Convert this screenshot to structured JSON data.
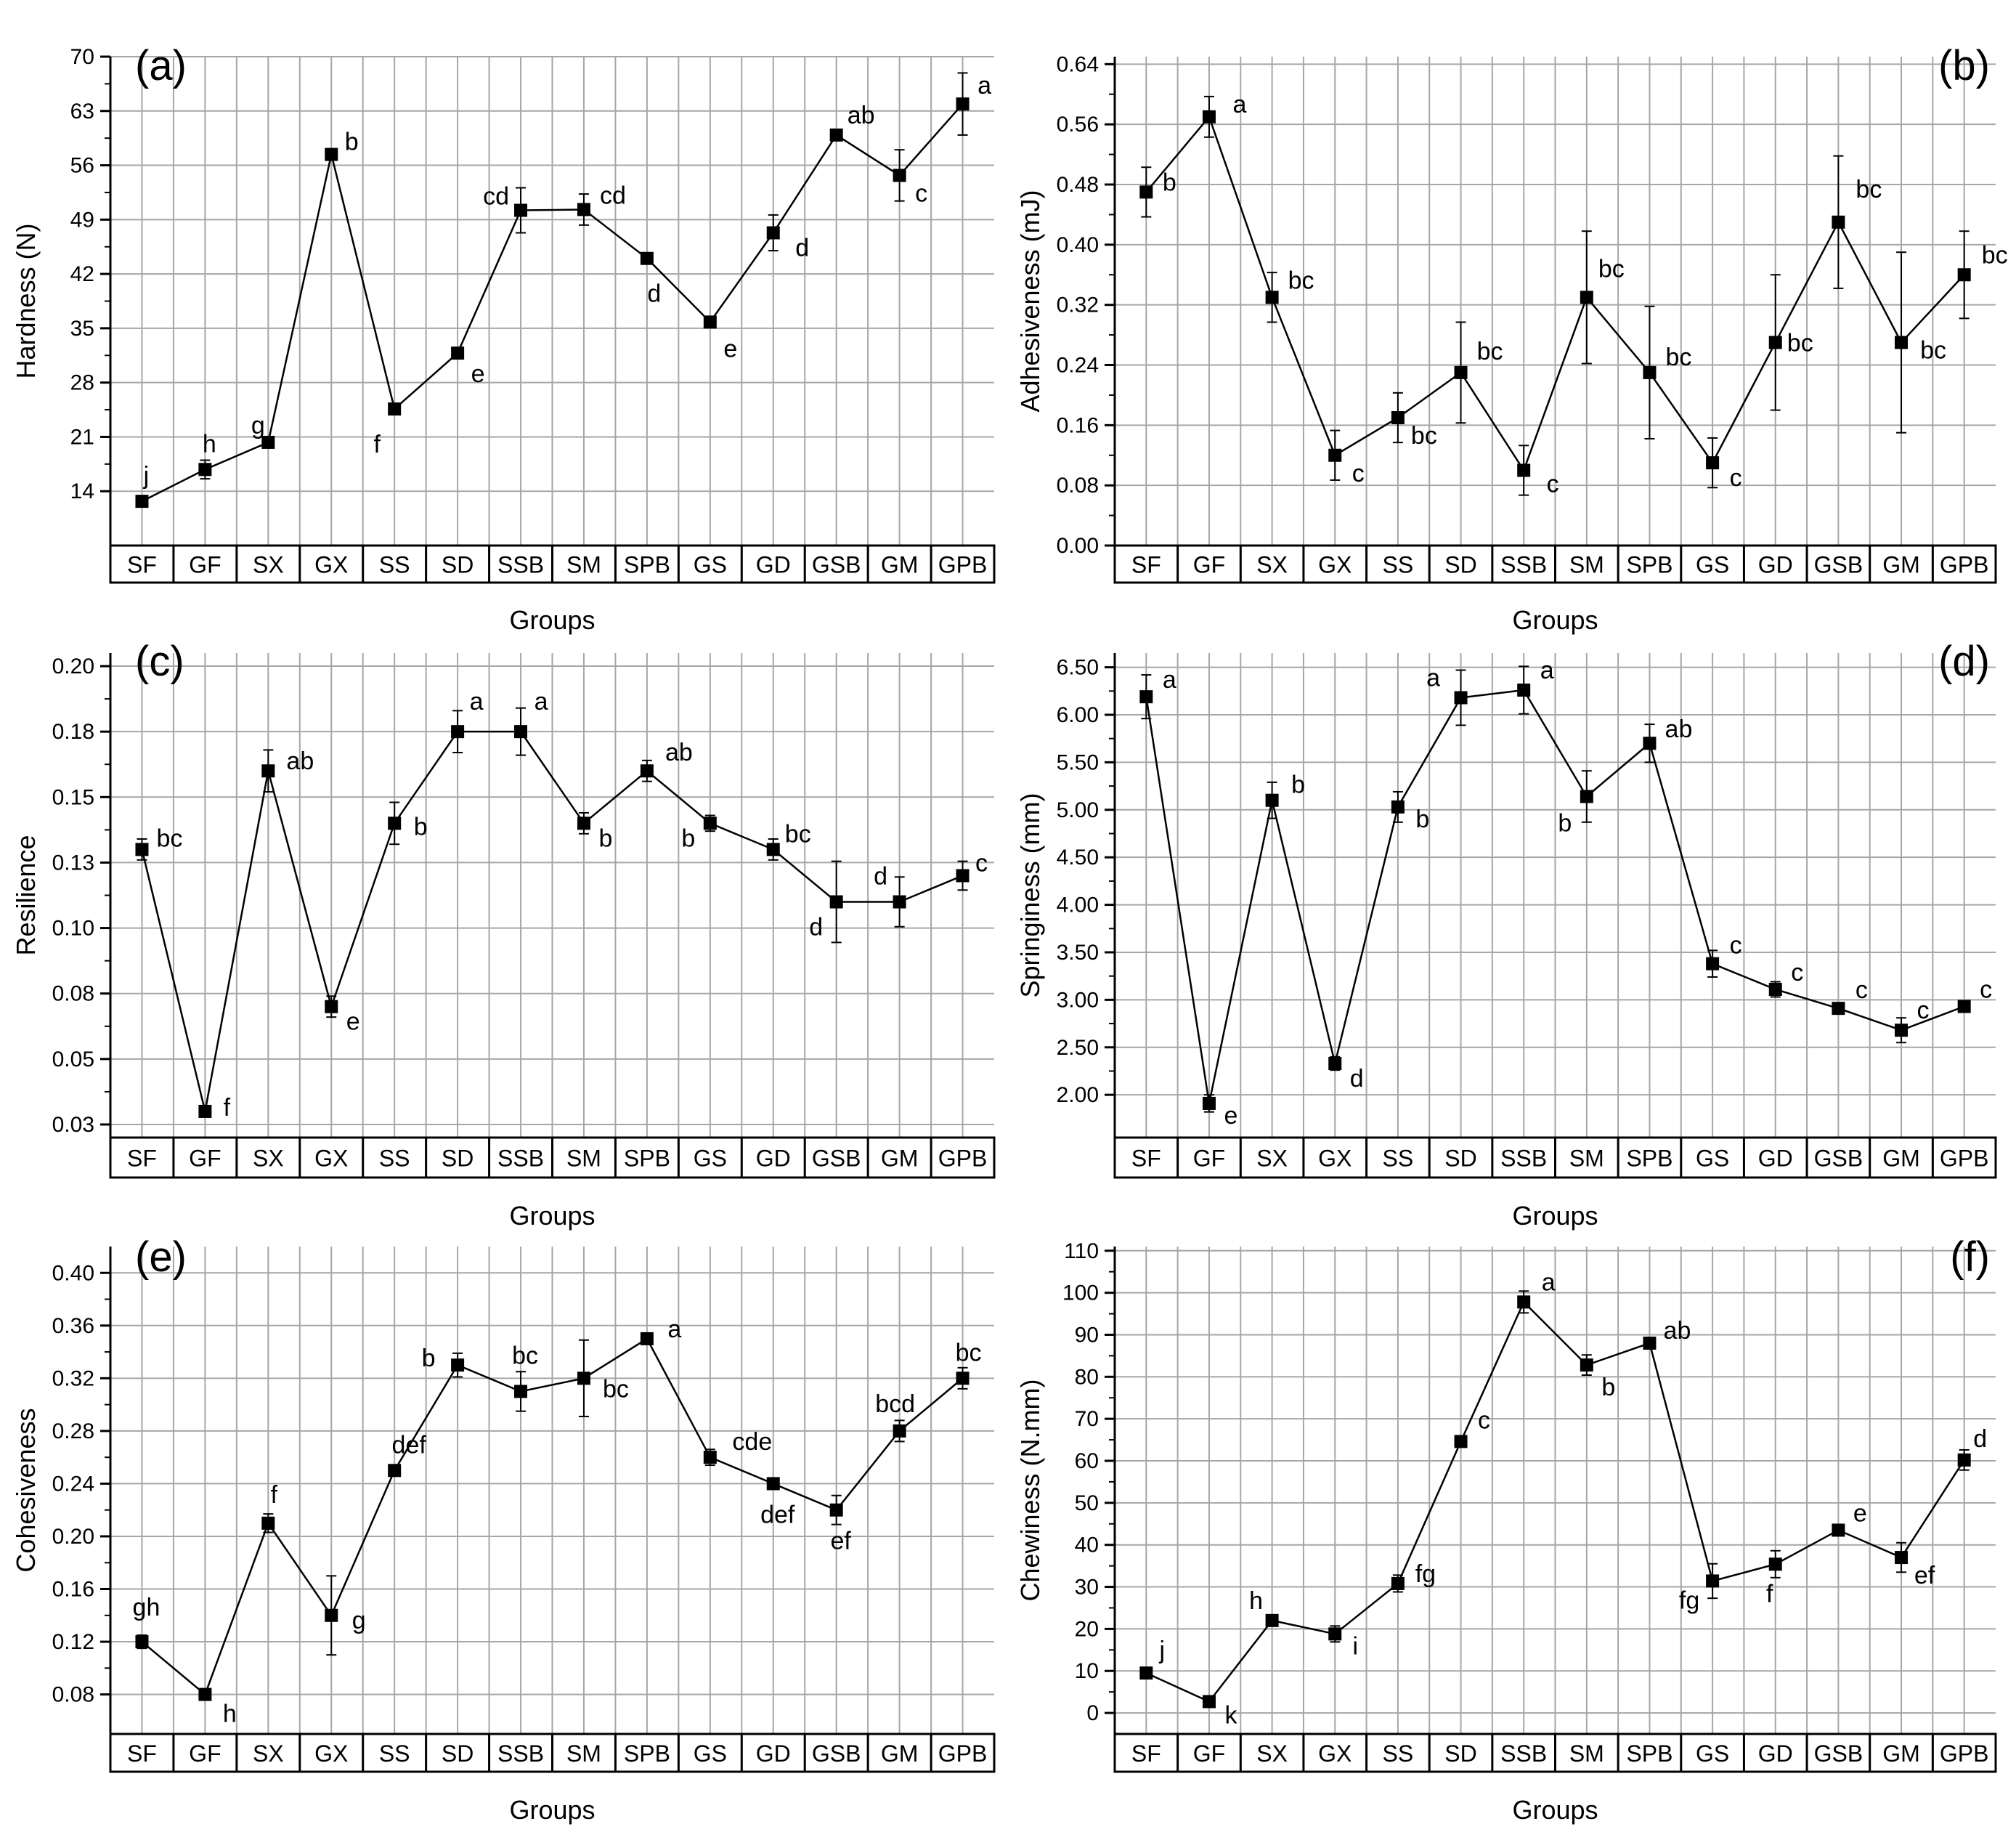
{
  "chart_data": [
    {
      "type": "line",
      "panel_label": "(a)",
      "xlabel": "Groups",
      "ylabel": "Hardness (N)",
      "categories": [
        "SF",
        "GF",
        "SX",
        "GX",
        "SS",
        "SD",
        "SSB",
        "SM",
        "SPB",
        "GS",
        "GD",
        "GSB",
        "GM",
        "GPB"
      ],
      "ylim": [
        7,
        70
      ],
      "yticks": [
        14,
        21,
        28,
        35,
        42,
        49,
        56,
        63,
        70
      ],
      "values": [
        12.7,
        16.8,
        20.3,
        57.4,
        24.6,
        31.8,
        50.2,
        50.3,
        44.0,
        35.8,
        47.3,
        59.9,
        54.7,
        63.9
      ],
      "errors": [
        0.3,
        1.2,
        0.5,
        0.6,
        0.5,
        0.6,
        2.9,
        2.0,
        0.6,
        0.5,
        2.3,
        0.5,
        3.3,
        4.0
      ],
      "significance": [
        "j",
        "h",
        "g",
        "b",
        "f",
        "e",
        "cd",
        "cd",
        "d",
        "e",
        "d",
        "ab",
        "c",
        "a"
      ],
      "grid": true,
      "legend": "none"
    },
    {
      "type": "line",
      "panel_label": "(b)",
      "xlabel": "Groups",
      "ylabel": "Adhesiveness (mJ)",
      "categories": [
        "SF",
        "GF",
        "SX",
        "GX",
        "SS",
        "SD",
        "SSB",
        "SM",
        "SPB",
        "GS",
        "GD",
        "GSB",
        "GM",
        "GPB"
      ],
      "ylim": [
        0,
        0.65
      ],
      "yticks": [
        0.0,
        0.08,
        0.16,
        0.24,
        0.32,
        0.4,
        0.48,
        0.56,
        0.64
      ],
      "values": [
        0.47,
        0.57,
        0.33,
        0.12,
        0.17,
        0.23,
        0.1,
        0.33,
        0.23,
        0.11,
        0.27,
        0.43,
        0.27,
        0.36
      ],
      "errors": [
        0.033,
        0.027,
        0.033,
        0.033,
        0.033,
        0.067,
        0.033,
        0.088,
        0.088,
        0.033,
        0.09,
        0.088,
        0.12,
        0.058
      ],
      "significance": [
        "b",
        "a",
        "bc",
        "c",
        "bc",
        "bc",
        "c",
        "bc",
        "bc",
        "c",
        "bc",
        "bc",
        "bc",
        "bc"
      ],
      "grid": true,
      "legend": "none"
    },
    {
      "type": "line",
      "panel_label": "(c)",
      "xlabel": "Groups",
      "ylabel": "Resilience",
      "categories": [
        "SF",
        "GF",
        "SX",
        "GX",
        "SS",
        "SD",
        "SSB",
        "SM",
        "SPB",
        "GS",
        "GD",
        "GSB",
        "GM",
        "GPB"
      ],
      "ylim": [
        0.02,
        0.205
      ],
      "yticks": [
        0.03,
        0.05,
        0.08,
        0.1,
        0.13,
        0.15,
        0.18,
        0.2
      ],
      "ytick_positions": [
        0.025,
        0.05,
        0.075,
        0.1,
        0.125,
        0.15,
        0.175,
        0.2
      ],
      "values": [
        0.13,
        0.03,
        0.16,
        0.07,
        0.14,
        0.175,
        0.175,
        0.14,
        0.16,
        0.14,
        0.13,
        0.11,
        0.11,
        0.12
      ],
      "errors": [
        0.004,
        0.002,
        0.008,
        0.004,
        0.008,
        0.008,
        0.009,
        0.004,
        0.004,
        0.003,
        0.004,
        0.0155,
        0.0095,
        0.0055
      ],
      "significance": [
        "bc",
        "f",
        "ab",
        "e",
        "b",
        "a",
        "a",
        "b",
        "ab",
        "b",
        "bc",
        "d",
        "d",
        "c"
      ],
      "grid": true,
      "legend": "none"
    },
    {
      "type": "line",
      "panel_label": "(d)",
      "xlabel": "Groups",
      "ylabel": "Springiness (mm)",
      "categories": [
        "SF",
        "GF",
        "SX",
        "GX",
        "SS",
        "SD",
        "SSB",
        "SM",
        "SPB",
        "GS",
        "GD",
        "GSB",
        "GM",
        "GPB"
      ],
      "ylim": [
        1.55,
        6.65
      ],
      "yticks": [
        2.0,
        2.5,
        3.0,
        3.5,
        4.0,
        4.5,
        5.0,
        5.5,
        6.0,
        6.5
      ],
      "values": [
        6.19,
        1.91,
        5.1,
        2.33,
        5.03,
        6.18,
        6.26,
        5.14,
        5.7,
        3.38,
        3.11,
        2.91,
        2.68,
        2.93
      ],
      "errors": [
        0.23,
        0.09,
        0.19,
        0.07,
        0.16,
        0.29,
        0.25,
        0.27,
        0.2,
        0.14,
        0.08,
        0.05,
        0.13,
        0.04
      ],
      "significance": [
        "a",
        "e",
        "b",
        "d",
        "b",
        "a",
        "a",
        "b",
        "ab",
        "c",
        "c",
        "c",
        "c",
        "c"
      ],
      "grid": true,
      "legend": "none"
    },
    {
      "type": "line",
      "panel_label": "(e)",
      "xlabel": "Groups",
      "ylabel": "Cohesiveness",
      "categories": [
        "SF",
        "GF",
        "SX",
        "GX",
        "SS",
        "SD",
        "SSB",
        "SM",
        "SPB",
        "GS",
        "GD",
        "GSB",
        "GM",
        "GPB"
      ],
      "ylim": [
        0.05,
        0.42
      ],
      "yticks": [
        0.08,
        0.12,
        0.16,
        0.2,
        0.24,
        0.28,
        0.32,
        0.36,
        0.4
      ],
      "values": [
        0.12,
        0.08,
        0.21,
        0.14,
        0.25,
        0.33,
        0.31,
        0.32,
        0.35,
        0.26,
        0.24,
        0.22,
        0.28,
        0.32
      ],
      "errors": [
        0.005,
        0.003,
        0.007,
        0.03,
        0.003,
        0.009,
        0.015,
        0.029,
        0.003,
        0.006,
        0.003,
        0.011,
        0.008,
        0.008
      ],
      "significance": [
        "gh",
        "h",
        "f",
        "g",
        "def",
        "b",
        "bc",
        "bc",
        "a",
        "cde",
        "def",
        "ef",
        "bcd",
        "bc"
      ],
      "grid": true,
      "legend": "none"
    },
    {
      "type": "line",
      "panel_label": "(f)",
      "xlabel": "Groups",
      "ylabel": "Chewiness (N.mm)",
      "categories": [
        "SF",
        "GF",
        "SX",
        "GX",
        "SS",
        "SD",
        "SSB",
        "SM",
        "SPB",
        "GS",
        "GD",
        "GSB",
        "GM",
        "GPB"
      ],
      "ylim": [
        -5,
        111
      ],
      "yticks": [
        0,
        10,
        20,
        30,
        40,
        50,
        60,
        70,
        80,
        90,
        100,
        110
      ],
      "values": [
        9.5,
        2.7,
        22.0,
        18.8,
        30.8,
        64.6,
        97.8,
        82.8,
        88.0,
        31.4,
        35.4,
        43.5,
        37.0,
        60.2
      ],
      "errors": [
        0.6,
        0.5,
        0.8,
        1.9,
        2.0,
        0.8,
        2.6,
        2.4,
        1.0,
        4.1,
        3.2,
        1.2,
        3.5,
        2.4
      ],
      "significance": [
        "j",
        "k",
        "h",
        "i",
        "fg",
        "c",
        "a",
        "b",
        "ab",
        "fg",
        "f",
        "e",
        "ef",
        "d"
      ],
      "grid": true,
      "legend": "none"
    }
  ]
}
